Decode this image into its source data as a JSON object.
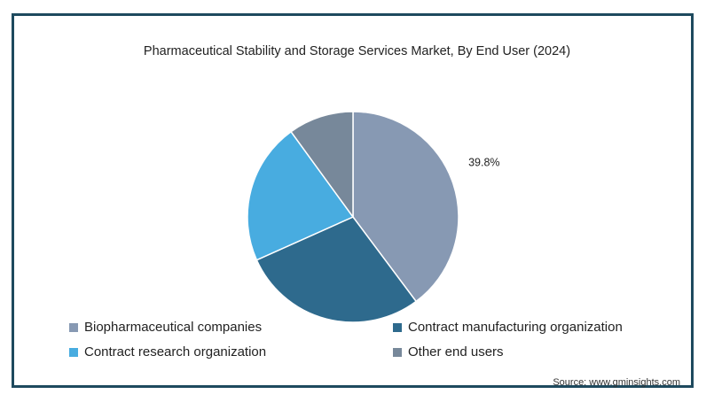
{
  "chart_data": {
    "type": "pie",
    "title": "Pharmaceutical Stability and Storage Services Market, By End User (2024)",
    "categories": [
      "Biopharmaceutical companies",
      "Contract manufacturing organization",
      "Contract research organization",
      "Other end users"
    ],
    "values": [
      39.8,
      28.5,
      21.7,
      10.0
    ],
    "colors": [
      "#8799b3",
      "#2e6a8d",
      "#48ace0",
      "#77889a"
    ],
    "data_labels": [
      "39.8%",
      "",
      "",
      ""
    ],
    "legend_position": "bottom",
    "source": "Source: www.gminsights.com"
  }
}
